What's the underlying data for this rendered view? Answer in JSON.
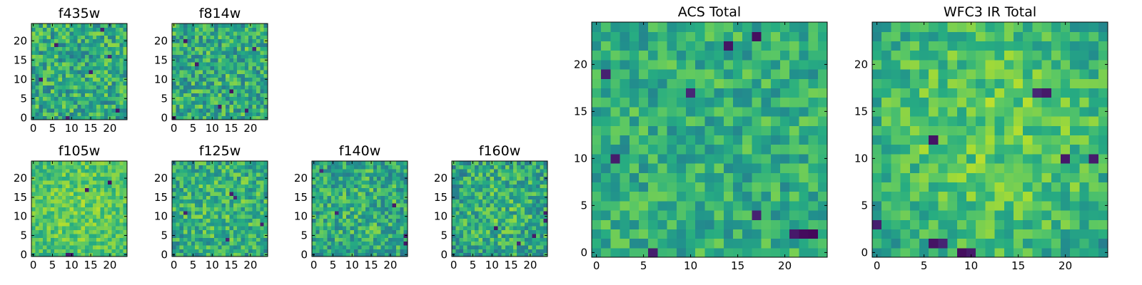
{
  "chart_data": [
    {
      "type": "heatmap",
      "title": "f435w",
      "size": 25,
      "xticks": [
        0,
        5,
        10,
        15,
        20
      ],
      "yticks": [
        0,
        5,
        10,
        15,
        20
      ],
      "xlim": [
        -0.5,
        24.5
      ],
      "ylim": [
        -0.5,
        24.5
      ],
      "colormap": "viridis",
      "seed": 11,
      "mean": 0.62,
      "spread": 0.22,
      "center_boost": 0.0,
      "dark_cells": [
        [
          9,
          0
        ],
        [
          22,
          2
        ],
        [
          2,
          10
        ],
        [
          15,
          12
        ],
        [
          6,
          19
        ],
        [
          20,
          16
        ],
        [
          18,
          23
        ]
      ]
    },
    {
      "type": "heatmap",
      "title": "f814w",
      "size": 25,
      "xticks": [
        0,
        5,
        10,
        15,
        20
      ],
      "yticks": [
        0,
        5,
        10,
        15,
        20
      ],
      "xlim": [
        -0.5,
        24.5
      ],
      "ylim": [
        -0.5,
        24.5
      ],
      "colormap": "viridis",
      "seed": 23,
      "mean": 0.62,
      "spread": 0.22,
      "center_boost": 0.0,
      "dark_cells": [
        [
          0,
          0
        ],
        [
          19,
          2
        ],
        [
          15,
          7
        ],
        [
          6,
          14
        ],
        [
          3,
          20
        ],
        [
          21,
          18
        ],
        [
          12,
          3
        ]
      ]
    },
    {
      "type": "heatmap",
      "title": "f105w",
      "size": 25,
      "xticks": [
        0,
        5,
        10,
        15,
        20
      ],
      "yticks": [
        0,
        5,
        10,
        15,
        20
      ],
      "xlim": [
        -0.5,
        24.5
      ],
      "ylim": [
        -0.5,
        24.5
      ],
      "colormap": "viridis",
      "seed": 37,
      "mean": 0.72,
      "spread": 0.14,
      "center_boost": 0.05,
      "dark_cells": [
        [
          14,
          17
        ],
        [
          9,
          0
        ],
        [
          10,
          0
        ],
        [
          20,
          19
        ]
      ]
    },
    {
      "type": "heatmap",
      "title": "f125w",
      "size": 25,
      "xticks": [
        0,
        5,
        10,
        15,
        20
      ],
      "yticks": [
        0,
        5,
        10,
        15,
        20
      ],
      "xlim": [
        -0.5,
        24.5
      ],
      "ylim": [
        -0.5,
        24.5
      ],
      "colormap": "viridis",
      "seed": 41,
      "mean": 0.62,
      "spread": 0.2,
      "center_boost": 0.05,
      "dark_cells": [
        [
          15,
          16
        ],
        [
          16,
          15
        ],
        [
          14,
          4
        ],
        [
          23,
          8
        ],
        [
          3,
          11
        ]
      ]
    },
    {
      "type": "heatmap",
      "title": "f140w",
      "size": 25,
      "xticks": [
        0,
        5,
        10,
        15,
        20
      ],
      "yticks": [
        0,
        5,
        10,
        15,
        20
      ],
      "xlim": [
        -0.5,
        24.5
      ],
      "ylim": [
        -0.5,
        24.5
      ],
      "colormap": "viridis",
      "seed": 53,
      "mean": 0.6,
      "spread": 0.21,
      "center_boost": 0.04,
      "dark_cells": [
        [
          2,
          22
        ],
        [
          24,
          3
        ],
        [
          24,
          5
        ],
        [
          6,
          11
        ],
        [
          21,
          13
        ]
      ]
    },
    {
      "type": "heatmap",
      "title": "f160w",
      "size": 25,
      "xticks": [
        0,
        5,
        10,
        15,
        20
      ],
      "yticks": [
        0,
        5,
        10,
        15,
        20
      ],
      "xlim": [
        -0.5,
        24.5
      ],
      "ylim": [
        -0.5,
        24.5
      ],
      "colormap": "viridis",
      "seed": 67,
      "mean": 0.6,
      "spread": 0.21,
      "center_boost": 0.06,
      "dark_cells": [
        [
          24,
          11
        ],
        [
          24,
          9
        ],
        [
          21,
          5
        ],
        [
          17,
          3
        ],
        [
          11,
          7
        ]
      ]
    },
    {
      "type": "heatmap",
      "title": "ACS Total",
      "size": 25,
      "xticks": [
        0,
        5,
        10,
        15,
        20
      ],
      "yticks": [
        0,
        5,
        10,
        15,
        20
      ],
      "xlim": [
        -0.5,
        24.5
      ],
      "ylim": [
        -0.5,
        24.5
      ],
      "colormap": "viridis",
      "seed": 71,
      "mean": 0.63,
      "spread": 0.17,
      "center_boost": 0.0,
      "dark_cells": [
        [
          1,
          19
        ],
        [
          10,
          17
        ],
        [
          17,
          23
        ],
        [
          14,
          22
        ],
        [
          6,
          0
        ],
        [
          17,
          4
        ],
        [
          21,
          2
        ],
        [
          22,
          2
        ],
        [
          23,
          2
        ],
        [
          2,
          10
        ]
      ]
    },
    {
      "type": "heatmap",
      "title": "WFC3 IR Total",
      "size": 25,
      "xticks": [
        0,
        5,
        10,
        15,
        20
      ],
      "yticks": [
        0,
        5,
        10,
        15,
        20
      ],
      "xlim": [
        -0.5,
        24.5
      ],
      "ylim": [
        -0.5,
        24.5
      ],
      "colormap": "viridis",
      "seed": 89,
      "mean": 0.66,
      "spread": 0.16,
      "center_boost": 0.1,
      "dark_cells": [
        [
          6,
          1
        ],
        [
          7,
          1
        ],
        [
          9,
          0
        ],
        [
          10,
          0
        ],
        [
          17,
          17
        ],
        [
          18,
          17
        ],
        [
          20,
          10
        ],
        [
          23,
          10
        ],
        [
          6,
          12
        ],
        [
          0,
          3
        ]
      ]
    }
  ]
}
